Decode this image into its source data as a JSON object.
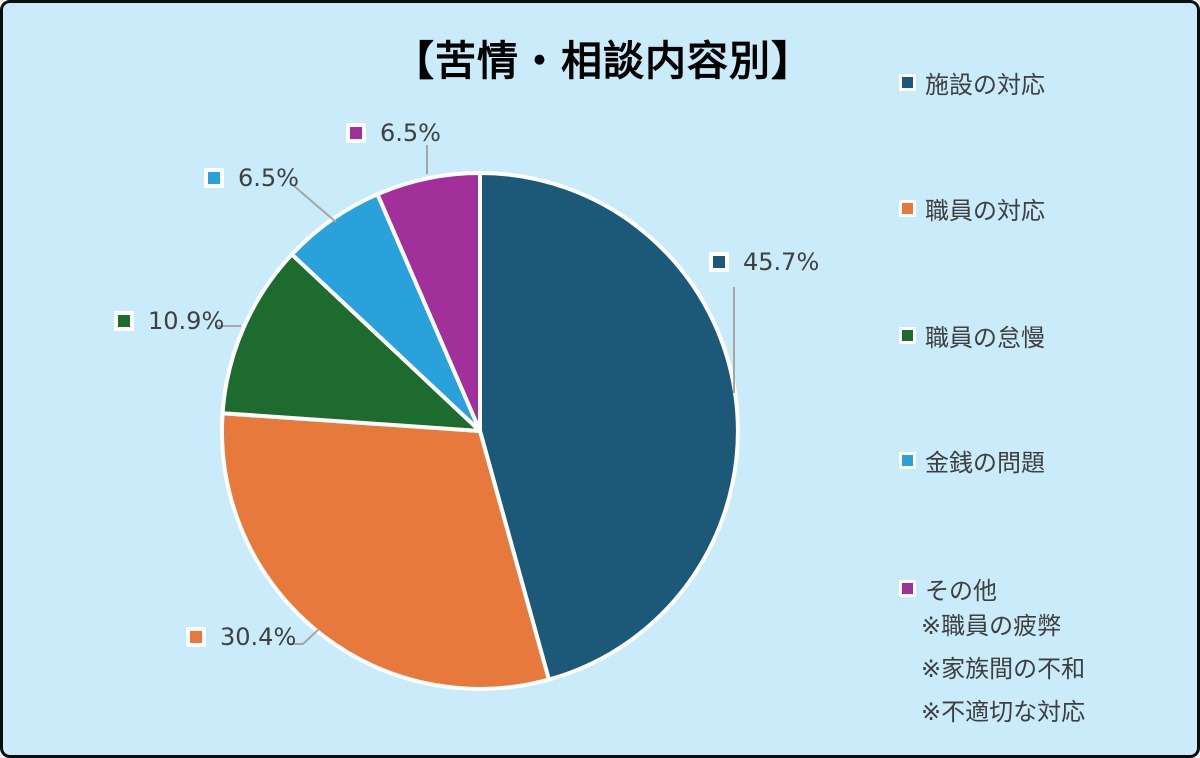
{
  "title": "【苦情・相談内容別】",
  "chart_data": {
    "type": "pie",
    "title": "【苦情・相談内容別】",
    "categories": [
      "施設の対応",
      "職員の対応",
      "職員の怠慢",
      "金銭の問題",
      "その他"
    ],
    "values": [
      45.7,
      30.4,
      10.9,
      6.5,
      6.5
    ],
    "unit": "%",
    "labels": [
      "45.7%",
      "30.4%",
      "10.9%",
      "6.5%",
      "6.5%"
    ],
    "colors": [
      "#1C5878",
      "#E8793D",
      "#1E6B2F",
      "#29A2DB",
      "#A2309B"
    ],
    "start_angle_deg": 0,
    "direction": "clockwise",
    "legend_position": "right",
    "background_color": "#CAEBFA",
    "slice_border_color": "#FFFFFF",
    "leader_line_color": "#A6A6A6"
  },
  "legend": {
    "items": [
      {
        "label": "施設の対応"
      },
      {
        "label": "職員の対応"
      },
      {
        "label": "職員の怠慢"
      },
      {
        "label": "金銭の問題"
      },
      {
        "label": "その他"
      }
    ],
    "notes": [
      "※職員の疲弊",
      "※家族間の不和",
      "※不適切な対応"
    ]
  }
}
